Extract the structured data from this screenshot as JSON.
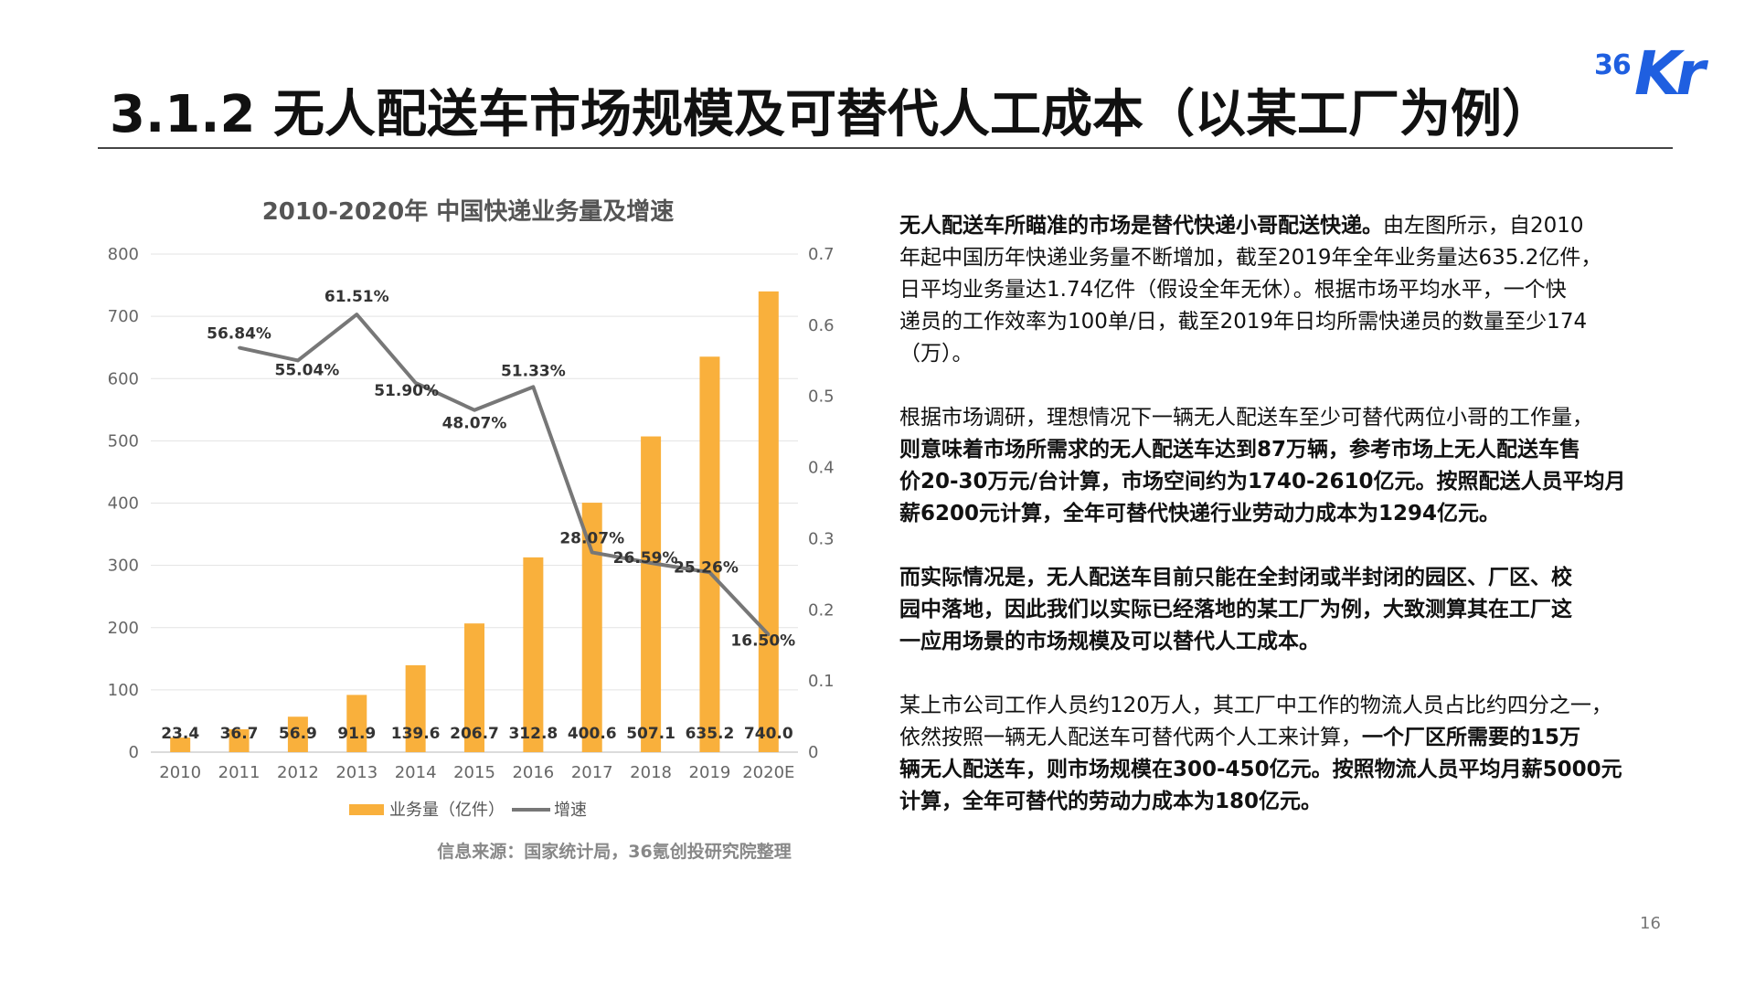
{
  "header": {
    "title": "3.1.2 无人配送车市场规模及可替代人工成本（以某工厂为例）",
    "logo": {
      "text_num": "36",
      "text_kr": "Kr",
      "color": "#1f5fe0"
    }
  },
  "chart_data": {
    "type": "bar",
    "title": "2010-2020年 中国快递业务量及增速",
    "categories": [
      "2010",
      "2011",
      "2012",
      "2013",
      "2014",
      "2015",
      "2016",
      "2017",
      "2018",
      "2019",
      "2020E"
    ],
    "series": [
      {
        "name": "业务量（亿件）",
        "type": "bar",
        "axis": "left",
        "color": "#f9b03c",
        "values": [
          23.4,
          36.7,
          56.9,
          91.9,
          139.6,
          206.7,
          312.8,
          400.6,
          507.1,
          635.2,
          740.0
        ],
        "labels": [
          "23.4",
          "36.7",
          "56.9",
          "91.9",
          "139.6",
          "206.7",
          "312.8",
          "400.6",
          "507.1",
          "635.2",
          "740.0"
        ]
      },
      {
        "name": "增速",
        "type": "line",
        "axis": "right",
        "color": "#777777",
        "values": [
          null,
          0.5684,
          0.5504,
          0.6151,
          0.519,
          0.4807,
          0.5133,
          0.2807,
          0.2659,
          0.2526,
          0.165
        ],
        "labels": [
          "",
          "56.84%",
          "55.04%",
          "61.51%",
          "51.90%",
          "48.07%",
          "51.33%",
          "28.07%",
          "26.59%",
          "25.26%",
          "16.50%"
        ]
      }
    ],
    "y_left": {
      "min": 0,
      "max": 800,
      "ticks": [
        "0",
        "100",
        "200",
        "300",
        "400",
        "500",
        "600",
        "700",
        "800"
      ]
    },
    "y_right": {
      "min": 0,
      "max": 0.7,
      "ticks": [
        "0",
        "0.1",
        "0.2",
        "0.3",
        "0.4",
        "0.5",
        "0.6",
        "0.7"
      ]
    },
    "grid": true,
    "legend": "bottom",
    "source": "信息来源：国家统计局，36氪创投研究院整理"
  },
  "body": {
    "p1_bold": "无人配送车所瞄准的市场是替代快递小哥配送快递。",
    "p1_rest": "由左图所示，自2010\n年起中国历年快递业务量不断增加，截至2019年全年业务量达635.2亿件，\n日平均业务量达1.74亿件（假设全年无休）。根据市场平均水平，一个快\n递员的工作效率为100单/日，截至2019年日均所需快递员的数量至少174\n（万）。",
    "p2_plain": "根据市场调研，理想情况下一辆无人配送车至少可替代两位小哥的工作量，\n",
    "p2_bold": "则意味着市场所需求的无人配送车达到87万辆，参考市场上无人配送车售\n价20-30万元/台计算，市场空间约为1740-2610亿元。按照配送人员平均月\n薪6200元计算，全年可替代快递行业劳动力成本为1294亿元。",
    "p3_bold": "而实际情况是，无人配送车目前只能在全封闭或半封闭的园区、厂区、校\n园中落地，因此我们以实际已经落地的某工厂为例，大致测算其在工厂这\n一应用场景的市场规模及可以替代人工成本。",
    "p4_plain": "某上市公司工作人员约120万人，其工厂中工作的物流人员占比约四分之一，\n依然按照一辆无人配送车可替代两个人工来计算，",
    "p4_bold": "一个厂区所需要的15万\n辆无人配送车，则市场规模在300-450亿元。按照物流人员平均月薪5000元\n计算，全年可替代的劳动力成本为180亿元。"
  },
  "footer": {
    "page_number": "16"
  }
}
